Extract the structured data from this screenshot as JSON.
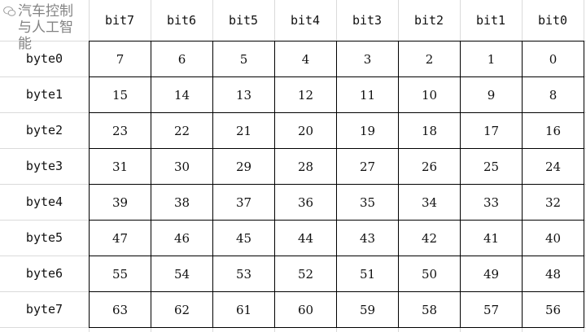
{
  "columns": [
    "bit7",
    "bit6",
    "bit5",
    "bit4",
    "bit3",
    "bit2",
    "bit1",
    "bit0"
  ],
  "rows": [
    {
      "label": "byte0",
      "values": [
        "7",
        "6",
        "5",
        "4",
        "3",
        "2",
        "1",
        "0"
      ]
    },
    {
      "label": "byte1",
      "values": [
        "15",
        "14",
        "13",
        "12",
        "11",
        "10",
        "9",
        "8"
      ]
    },
    {
      "label": "byte2",
      "values": [
        "23",
        "22",
        "21",
        "20",
        "19",
        "18",
        "17",
        "16"
      ]
    },
    {
      "label": "byte3",
      "values": [
        "31",
        "30",
        "29",
        "28",
        "27",
        "26",
        "25",
        "24"
      ]
    },
    {
      "label": "byte4",
      "values": [
        "39",
        "38",
        "37",
        "36",
        "35",
        "34",
        "33",
        "32"
      ]
    },
    {
      "label": "byte5",
      "values": [
        "47",
        "46",
        "45",
        "44",
        "43",
        "42",
        "41",
        "40"
      ]
    },
    {
      "label": "byte6",
      "values": [
        "55",
        "54",
        "53",
        "52",
        "51",
        "50",
        "49",
        "48"
      ]
    },
    {
      "label": "byte7",
      "values": [
        "63",
        "62",
        "61",
        "60",
        "59",
        "58",
        "57",
        "56"
      ]
    }
  ],
  "watermark": {
    "text": "汽车控制与人工智能",
    "icon": "wechat-icon"
  }
}
